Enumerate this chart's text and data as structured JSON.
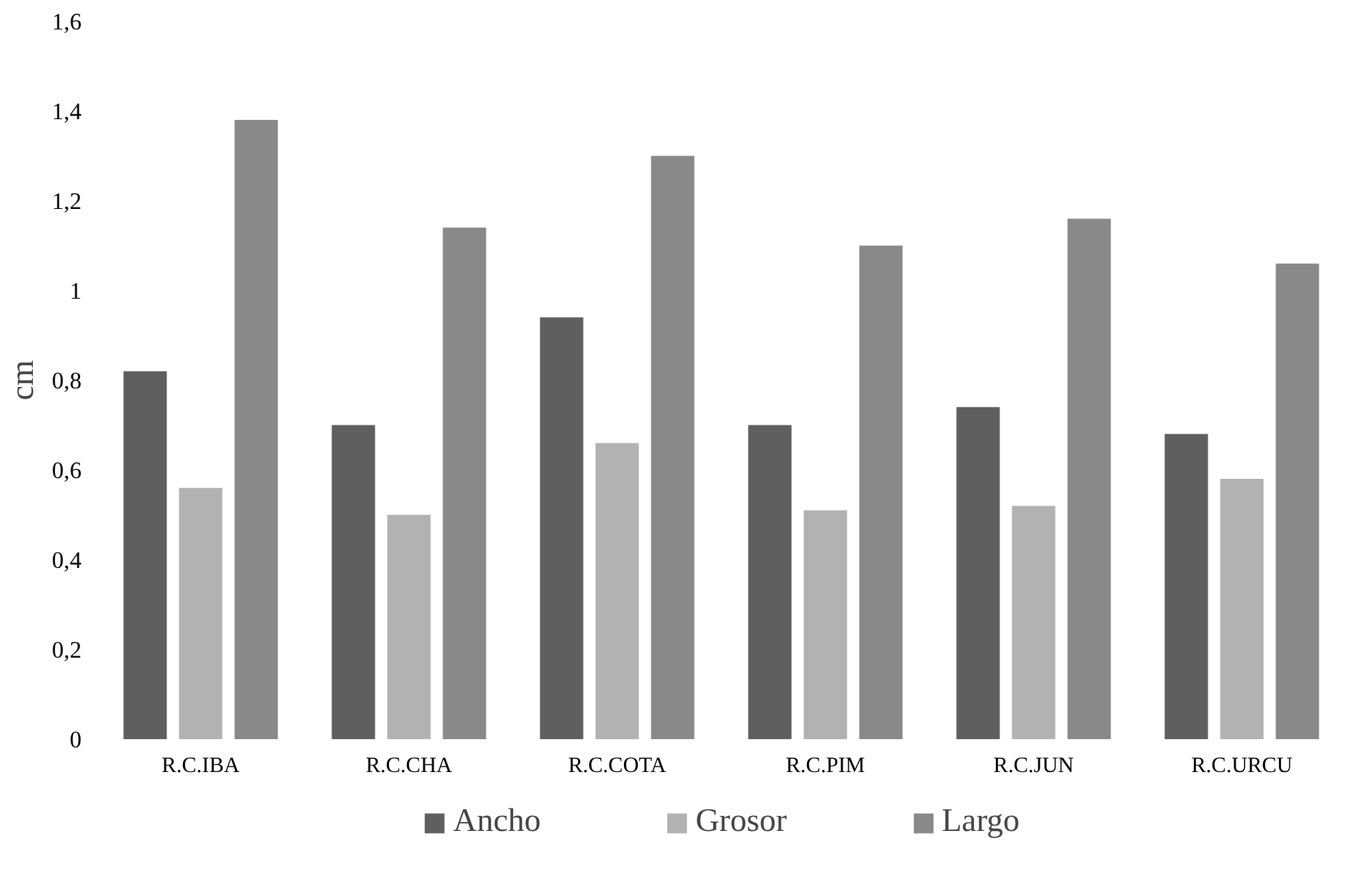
{
  "chart_data": {
    "type": "bar",
    "ylabel": "cm",
    "categories": [
      "R.C.IBA",
      "R.C.CHA",
      "R.C.COTA",
      "R.C.PIM",
      "R.C.JUN",
      "R.C.URCU"
    ],
    "series": [
      {
        "name": "Ancho",
        "color": "#5f5f5f",
        "values": [
          0.82,
          0.7,
          0.94,
          0.7,
          0.74,
          0.68
        ]
      },
      {
        "name": "Grosor",
        "color": "#b2b2b2",
        "values": [
          0.56,
          0.5,
          0.66,
          0.51,
          0.52,
          0.58
        ]
      },
      {
        "name": "Largo",
        "color": "#898989",
        "values": [
          1.38,
          1.14,
          1.3,
          1.1,
          1.16,
          1.06
        ]
      }
    ],
    "ylim": [
      0,
      1.6
    ],
    "yticks": [
      {
        "value": 0,
        "label": "0"
      },
      {
        "value": 0.2,
        "label": "0,2"
      },
      {
        "value": 0.4,
        "label": "0,4"
      },
      {
        "value": 0.6,
        "label": "0,6"
      },
      {
        "value": 0.8,
        "label": "0,8"
      },
      {
        "value": 1,
        "label": "1"
      },
      {
        "value": 1.2,
        "label": "1,2"
      },
      {
        "value": 1.4,
        "label": "1,4"
      },
      {
        "value": 1.6,
        "label": "1,6"
      }
    ],
    "grid": false,
    "legend": "bottom"
  }
}
